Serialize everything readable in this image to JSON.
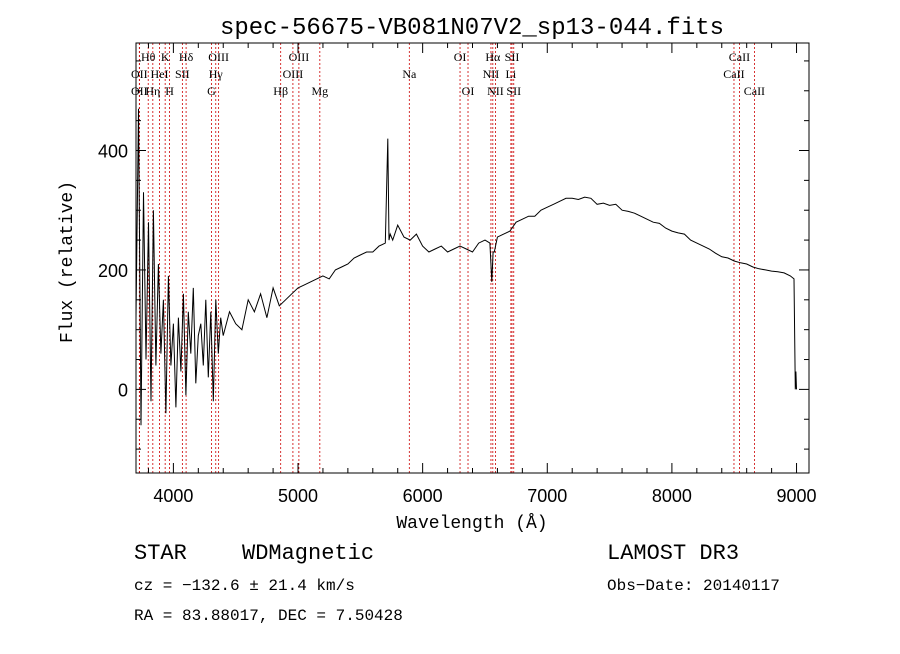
{
  "chart_data": {
    "type": "line",
    "title": "spec-56675-VB081N07V2_sp13-044.fits",
    "xlabel": "Wavelength (Å)",
    "ylabel": "Flux (relative)",
    "xlim": [
      3700,
      9100
    ],
    "ylim": [
      -140,
      580
    ],
    "xticks": [
      4000,
      5000,
      6000,
      7000,
      8000,
      9000
    ],
    "yticks": [
      0,
      200,
      400
    ],
    "series": [
      {
        "name": "flux",
        "x": [
          3700,
          3720,
          3740,
          3760,
          3780,
          3800,
          3820,
          3840,
          3860,
          3880,
          3900,
          3920,
          3940,
          3960,
          3980,
          4000,
          4020,
          4040,
          4060,
          4080,
          4100,
          4120,
          4140,
          4160,
          4180,
          4200,
          4220,
          4240,
          4260,
          4280,
          4300,
          4320,
          4340,
          4360,
          4380,
          4400,
          4450,
          4500,
          4550,
          4600,
          4650,
          4700,
          4750,
          4800,
          4850,
          4900,
          4950,
          5000,
          5050,
          5100,
          5150,
          5200,
          5250,
          5300,
          5350,
          5400,
          5450,
          5500,
          5550,
          5600,
          5650,
          5700,
          5720,
          5730,
          5740,
          5760,
          5800,
          5850,
          5900,
          5950,
          6000,
          6050,
          6100,
          6150,
          6200,
          6250,
          6300,
          6350,
          6400,
          6450,
          6500,
          6540,
          6555,
          6565,
          6575,
          6600,
          6650,
          6700,
          6750,
          6800,
          6850,
          6900,
          6950,
          7000,
          7050,
          7100,
          7150,
          7200,
          7250,
          7300,
          7350,
          7400,
          7450,
          7500,
          7550,
          7600,
          7650,
          7700,
          7750,
          7800,
          7850,
          7900,
          7950,
          8000,
          8050,
          8100,
          8150,
          8200,
          8250,
          8300,
          8350,
          8400,
          8450,
          8500,
          8550,
          8600,
          8650,
          8700,
          8750,
          8800,
          8850,
          8900,
          8950,
          8980,
          8990,
          8995,
          9000
        ],
        "values": [
          120,
          470,
          -60,
          330,
          50,
          280,
          -20,
          300,
          40,
          210,
          60,
          150,
          -40,
          190,
          40,
          110,
          -30,
          120,
          30,
          160,
          -10,
          130,
          60,
          170,
          10,
          90,
          110,
          40,
          150,
          20,
          130,
          -20,
          150,
          60,
          120,
          90,
          130,
          110,
          100,
          150,
          130,
          160,
          120,
          170,
          140,
          150,
          160,
          170,
          175,
          180,
          185,
          190,
          185,
          200,
          205,
          210,
          220,
          225,
          230,
          230,
          240,
          245,
          420,
          250,
          260,
          250,
          275,
          255,
          250,
          260,
          240,
          230,
          235,
          240,
          230,
          235,
          240,
          235,
          230,
          245,
          250,
          245,
          180,
          230,
          230,
          255,
          260,
          265,
          280,
          285,
          290,
          290,
          300,
          305,
          310,
          315,
          320,
          320,
          318,
          322,
          320,
          310,
          312,
          308,
          310,
          300,
          298,
          295,
          290,
          285,
          280,
          278,
          270,
          265,
          262,
          260,
          250,
          245,
          240,
          235,
          228,
          222,
          220,
          215,
          212,
          210,
          205,
          202,
          200,
          198,
          197,
          195,
          190,
          185,
          0,
          30,
          0
        ]
      }
    ],
    "spectral_lines": [
      {
        "label": "OII",
        "wavelength": 3727,
        "row": 2
      },
      {
        "label": "Hθ",
        "wavelength": 3798,
        "row": 1
      },
      {
        "label": "OII",
        "wavelength": 3727,
        "row": 3
      },
      {
        "label": "Hη",
        "wavelength": 3835,
        "row": 3
      },
      {
        "label": "HeI",
        "wavelength": 3889,
        "row": 2
      },
      {
        "label": "K",
        "wavelength": 3934,
        "row": 1
      },
      {
        "label": "H",
        "wavelength": 3969,
        "row": 3
      },
      {
        "label": "SII",
        "wavelength": 4072,
        "row": 2
      },
      {
        "label": "Hδ",
        "wavelength": 4102,
        "row": 1
      },
      {
        "label": "OIII",
        "wavelength": 4363,
        "row": 1
      },
      {
        "label": "Hγ",
        "wavelength": 4340,
        "row": 2
      },
      {
        "label": "G",
        "wavelength": 4305,
        "row": 3
      },
      {
        "label": "Hβ",
        "wavelength": 4861,
        "row": 3
      },
      {
        "label": "OIII",
        "wavelength": 5007,
        "row": 1
      },
      {
        "label": "OIII",
        "wavelength": 4959,
        "row": 2
      },
      {
        "label": "Mg",
        "wavelength": 5175,
        "row": 3
      },
      {
        "label": "Na",
        "wavelength": 5893,
        "row": 2
      },
      {
        "label": "OI",
        "wavelength": 6300,
        "row": 1
      },
      {
        "label": "OI",
        "wavelength": 6364,
        "row": 3
      },
      {
        "label": "Hα",
        "wavelength": 6563,
        "row": 1
      },
      {
        "label": "SII",
        "wavelength": 6717,
        "row": 1
      },
      {
        "label": "NII",
        "wavelength": 6548,
        "row": 2
      },
      {
        "label": "Li",
        "wavelength": 6708,
        "row": 2
      },
      {
        "label": "NII",
        "wavelength": 6584,
        "row": 3
      },
      {
        "label": "SII",
        "wavelength": 6731,
        "row": 3
      },
      {
        "label": "CaII",
        "wavelength": 8542,
        "row": 1
      },
      {
        "label": "CaII",
        "wavelength": 8498,
        "row": 2
      },
      {
        "label": "CaII",
        "wavelength": 8662,
        "row": 3
      }
    ]
  },
  "info": {
    "object_class": "STAR",
    "subclass": "WDMagnetic",
    "survey": "LAMOST DR3",
    "cz_line": "cz = −132.6 ± 21.4 km/s",
    "obs_date_line": "Obs−Date: 20140117",
    "coords_line": "RA =  83.88017, DEC =   7.50428"
  },
  "colors": {
    "axis": "#000000",
    "spectrum": "#000000",
    "line_marker": "#cc0000"
  }
}
